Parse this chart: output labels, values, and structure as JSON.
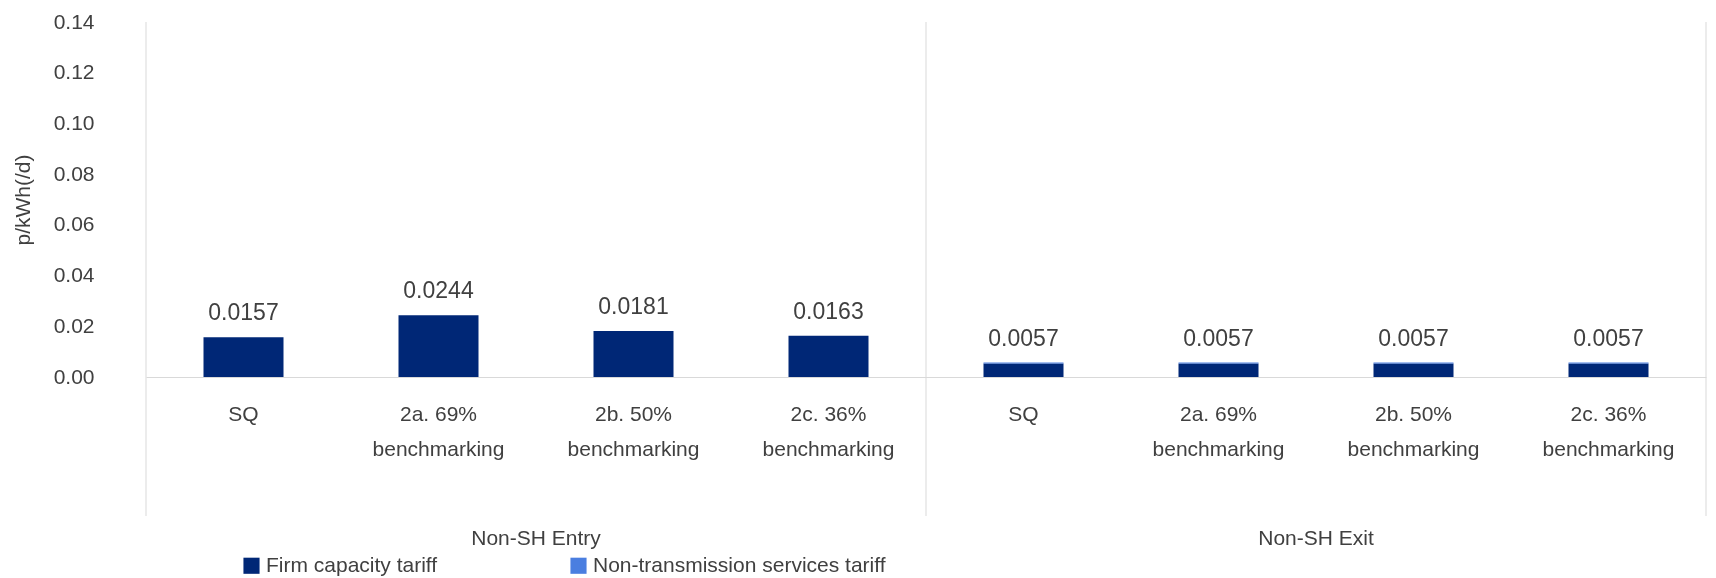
{
  "chart_data": {
    "type": "bar",
    "stacked": true,
    "ylabel": "p/kWh(/d)",
    "categories": [
      "SQ",
      "2a. 69% benchmarking",
      "2b. 50% benchmarking",
      "2c. 36% benchmarking",
      "SQ",
      "2a. 69% benchmarking",
      "2b. 50% benchmarking",
      "2c. 36% benchmarking"
    ],
    "series": [
      {
        "name": "Firm capacity tariff",
        "color": "#002776",
        "values": [
          0.0157,
          0.0244,
          0.0181,
          0.0163,
          0.0053,
          0.0053,
          0.0053,
          0.0053
        ]
      },
      {
        "name": "Non-transmission services tariff",
        "color": "#4a7ee0",
        "values": [
          null,
          null,
          null,
          null,
          0.0004,
          0.0004,
          0.0004,
          0.0004
        ]
      }
    ],
    "totals": [
      "0.0157",
      "0.0244",
      "0.0181",
      "0.0163",
      "0.0057",
      "0.0057",
      "0.0057",
      "0.0057"
    ],
    "annotations": [
      "Non-SH Entry",
      "Non-SH Exit"
    ],
    "ylim": [
      0,
      0.14
    ],
    "yticks": [
      {
        "value": 0,
        "label": "0.00"
      },
      {
        "value": 0.02,
        "label": "0.02"
      },
      {
        "value": 0.04,
        "label": "0.04"
      },
      {
        "value": 0.06,
        "label": "0.06"
      },
      {
        "value": 0.08,
        "label": "0.08"
      },
      {
        "value": 0.1,
        "label": "0.10"
      },
      {
        "value": 0.12,
        "label": "0.12"
      },
      {
        "value": 0.14,
        "label": "0.14"
      }
    ],
    "grid": false,
    "legend": "bottom left"
  }
}
